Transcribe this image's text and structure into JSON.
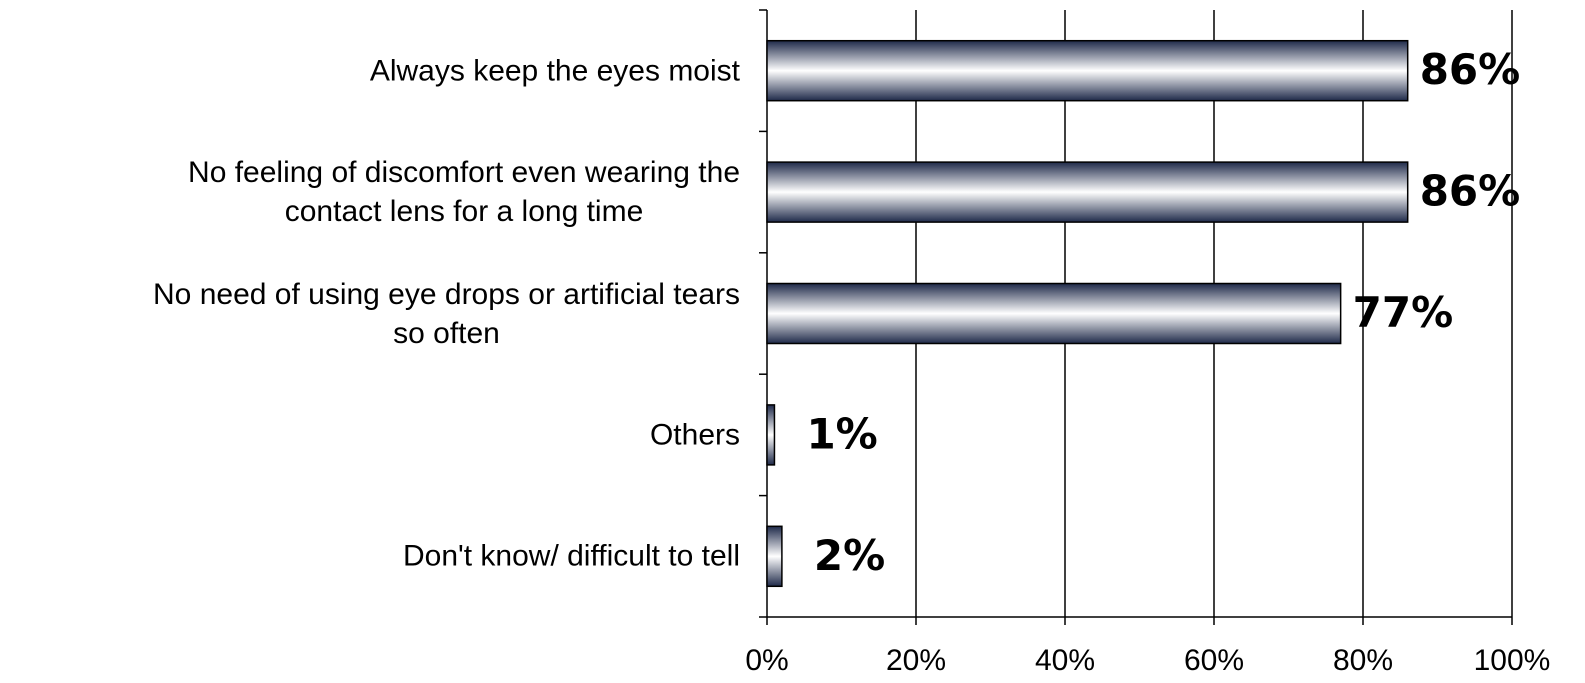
{
  "chart_data": {
    "type": "bar",
    "orientation": "horizontal",
    "categories": [
      "Always keep the eyes moist",
      "No feeling of discomfort even wearing the\ncontact lens for a long time",
      "No need of using eye drops or artificial tears\nso often",
      "Others",
      "Don't know/ difficult to tell"
    ],
    "values": [
      86,
      86,
      77,
      1,
      2
    ],
    "value_labels": [
      "86%",
      "86%",
      "77%",
      "1%",
      "2%"
    ],
    "color": "#1f2a4a",
    "xlim": [
      0,
      100
    ],
    "xticks": [
      {
        "value": 0,
        "label": "0%"
      },
      {
        "value": 20,
        "label": "20%"
      },
      {
        "value": 40,
        "label": "40%"
      },
      {
        "value": 60,
        "label": "60%"
      },
      {
        "value": 80,
        "label": "80%"
      },
      {
        "value": 100,
        "label": "100%"
      }
    ],
    "grid": true
  }
}
